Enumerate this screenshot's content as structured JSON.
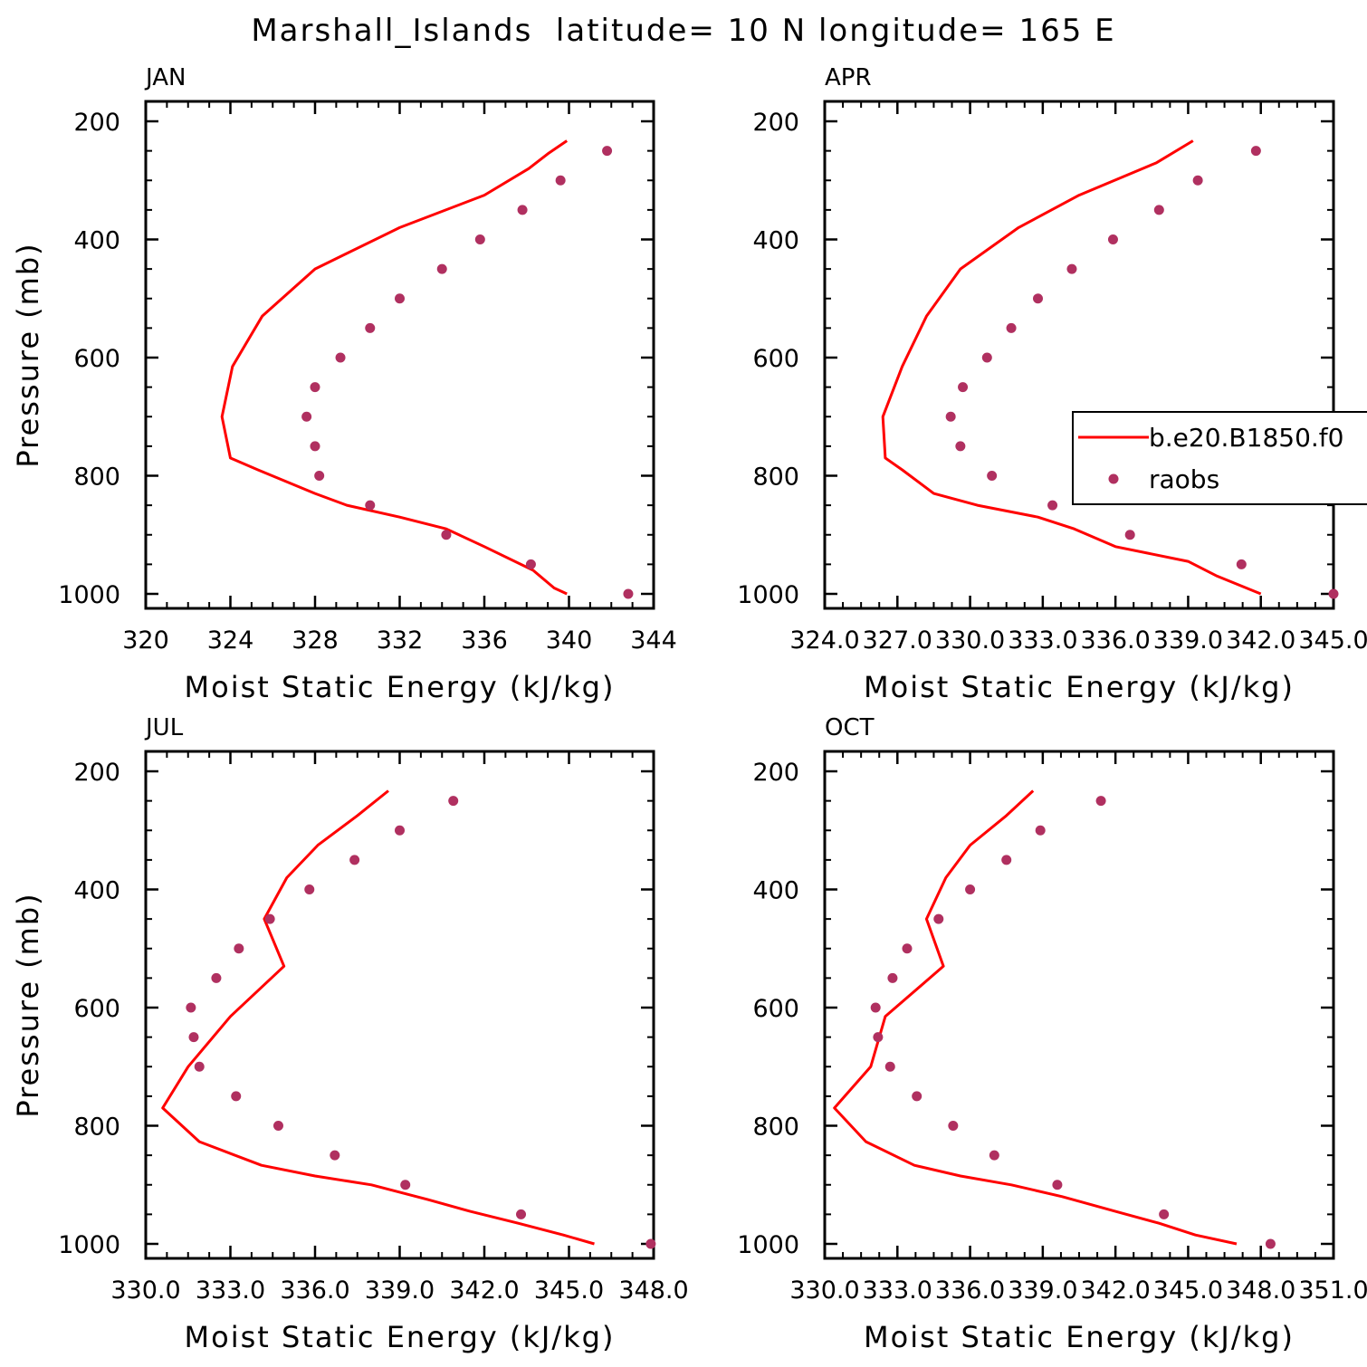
{
  "figure": {
    "title": "Marshall_Islands  latitude= 10 N longitude= 165 E"
  },
  "colors": {
    "model_line": "#ff0000",
    "raobs_marker": "#b03060",
    "axis": "#000000"
  },
  "legend": {
    "panel": "APR",
    "placement": "right, clipped at figure edge",
    "entries": [
      {
        "label": "b.e20.B1850.f0",
        "style": "line"
      },
      {
        "label": "raobs",
        "style": "marker"
      }
    ]
  },
  "chart_data": [
    {
      "type": "line",
      "panel_label": "JAN",
      "xlabel": "Moist Static Energy (kJ/kg)",
      "ylabel": "Pressure (mb)",
      "xlim": [
        320,
        344
      ],
      "ylim": [
        200,
        1000
      ],
      "y_inverted": true,
      "xticks": [
        "320",
        "324",
        "328",
        "332",
        "336",
        "340",
        "344"
      ],
      "yticks": [
        "200",
        "400",
        "600",
        "800",
        "1000"
      ],
      "series": [
        {
          "name": "b.e20.B1850.f0",
          "style": "line",
          "x": [
            339.9,
            339.3,
            338.3,
            336.0,
            334.2,
            332.0,
            329.5,
            328.0,
            325.3,
            324.0,
            323.6,
            324.1,
            325.5,
            328.0,
            332.0,
            336.0,
            338.1,
            339.0,
            339.9
          ],
          "y": [
            1000,
            990,
            960,
            920,
            890,
            870,
            850,
            830,
            790,
            770,
            700,
            615,
            530,
            450,
            380,
            325,
            280,
            255,
            233
          ]
        },
        {
          "name": "raobs",
          "style": "marker",
          "x": [
            342.8,
            338.2,
            334.2,
            330.6,
            328.2,
            328.0,
            327.6,
            328.0,
            329.2,
            330.6,
            332.0,
            334.0,
            335.8,
            337.8,
            339.6,
            341.8
          ],
          "y": [
            1000,
            950,
            900,
            850,
            800,
            750,
            700,
            650,
            600,
            550,
            500,
            450,
            400,
            350,
            300,
            250
          ]
        }
      ]
    },
    {
      "type": "line",
      "panel_label": "APR",
      "xlabel": "Moist Static Energy (kJ/kg)",
      "ylabel": "",
      "xlim": [
        324,
        345
      ],
      "ylim": [
        200,
        1000
      ],
      "y_inverted": true,
      "xticks": [
        "324.0",
        "327.0",
        "330.0",
        "333.0",
        "336.0",
        "339.0",
        "342.0",
        "345.0"
      ],
      "yticks": [
        "200",
        "400",
        "600",
        "800",
        "1000"
      ],
      "series": [
        {
          "name": "b.e20.B1850.f0",
          "style": "line",
          "x": [
            342.0,
            340.2,
            339.0,
            336.0,
            334.3,
            332.8,
            330.3,
            328.5,
            327.2,
            326.5,
            326.4,
            327.2,
            328.2,
            329.6,
            332.0,
            334.5,
            337.7,
            339.2
          ],
          "y": [
            1000,
            970,
            945,
            920,
            890,
            870,
            850,
            830,
            790,
            770,
            700,
            615,
            530,
            450,
            380,
            325,
            270,
            233
          ]
        },
        {
          "name": "raobs",
          "style": "marker",
          "x": [
            345.0,
            341.2,
            336.6,
            333.4,
            330.9,
            329.6,
            329.2,
            329.7,
            330.7,
            331.7,
            332.8,
            334.2,
            335.9,
            337.8,
            339.4,
            341.8
          ],
          "y": [
            1000,
            950,
            900,
            850,
            800,
            750,
            700,
            650,
            600,
            550,
            500,
            450,
            400,
            350,
            300,
            250
          ]
        }
      ]
    },
    {
      "type": "line",
      "panel_label": "JUL",
      "xlabel": "Moist Static Energy (kJ/kg)",
      "ylabel": "Pressure (mb)",
      "xlim": [
        330,
        348
      ],
      "ylim": [
        200,
        1000
      ],
      "y_inverted": true,
      "xticks": [
        "330.0",
        "333.0",
        "336.0",
        "339.0",
        "342.0",
        "345.0",
        "348.0"
      ],
      "yticks": [
        "200",
        "400",
        "600",
        "800",
        "1000"
      ],
      "series": [
        {
          "name": "b.e20.B1850.f0",
          "style": "line",
          "x": [
            345.9,
            344.8,
            343.2,
            341.5,
            340.0,
            338.0,
            336.0,
            334.1,
            331.9,
            330.6,
            331.5,
            333.0,
            334.9,
            334.2,
            335.0,
            336.1,
            337.5,
            338.6
          ],
          "y": [
            1000,
            985,
            965,
            945,
            925,
            900,
            885,
            867,
            827,
            770,
            700,
            615,
            530,
            450,
            380,
            325,
            275,
            233
          ]
        },
        {
          "name": "raobs",
          "style": "marker",
          "x": [
            347.9,
            343.3,
            339.2,
            336.7,
            334.7,
            333.2,
            331.9,
            331.7,
            331.6,
            332.5,
            333.3,
            334.4,
            335.8,
            337.4,
            339.0,
            340.9
          ],
          "y": [
            1000,
            950,
            900,
            850,
            800,
            750,
            700,
            650,
            600,
            550,
            500,
            450,
            400,
            350,
            300,
            250
          ]
        }
      ]
    },
    {
      "type": "line",
      "panel_label": "OCT",
      "xlabel": "Moist Static Energy (kJ/kg)",
      "ylabel": "",
      "xlim": [
        330,
        351
      ],
      "ylim": [
        200,
        1000
      ],
      "y_inverted": true,
      "xticks": [
        "330.0",
        "333.0",
        "336.0",
        "339.0",
        "342.0",
        "345.0",
        "348.0",
        "351.0"
      ],
      "yticks": [
        "200",
        "400",
        "600",
        "800",
        "1000"
      ],
      "series": [
        {
          "name": "b.e20.B1850.f0",
          "style": "line",
          "x": [
            347.0,
            345.3,
            343.8,
            342.0,
            339.8,
            337.7,
            335.6,
            333.7,
            331.7,
            330.4,
            331.9,
            332.5,
            334.9,
            334.2,
            335.0,
            336.0,
            337.5,
            338.6
          ],
          "y": [
            1000,
            985,
            965,
            945,
            920,
            900,
            885,
            867,
            827,
            770,
            700,
            615,
            530,
            450,
            380,
            325,
            275,
            233
          ]
        },
        {
          "name": "raobs",
          "style": "marker",
          "x": [
            348.4,
            344.0,
            339.6,
            337.0,
            335.3,
            333.8,
            332.7,
            332.2,
            332.1,
            332.8,
            333.4,
            334.7,
            336.0,
            337.5,
            338.9,
            341.4
          ],
          "y": [
            1000,
            950,
            900,
            850,
            800,
            750,
            700,
            650,
            600,
            550,
            500,
            450,
            400,
            350,
            300,
            250
          ]
        }
      ]
    }
  ]
}
